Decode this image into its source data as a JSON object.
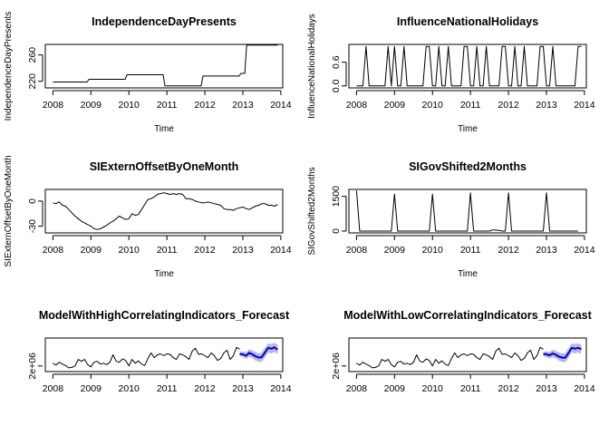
{
  "chart_data": [
    {
      "type": "line",
      "title": "IndependenceDayPresents",
      "xlabel": "Time",
      "ylabel": "IndependenceDayPresents",
      "xlim": [
        2007.8,
        2014.05
      ],
      "ylim": [
        210,
        276
      ],
      "xticks": [
        "2008",
        "2009",
        "2010",
        "2011",
        "2012",
        "2013",
        "2014"
      ],
      "yticks": [
        "220",
        "260"
      ],
      "grid": false,
      "series": [
        {
          "x": [
            2008.0,
            2008.9,
            2008.95,
            2009.9,
            2009.95,
            2010.9,
            2010.95,
            2011.9,
            2011.95,
            2012.9,
            2012.95,
            2013.05,
            2013.1,
            2013.92
          ],
          "y": [
            219,
            219,
            223,
            223,
            230,
            230,
            213,
            213,
            228,
            228,
            232,
            232,
            275,
            275
          ],
          "color": "#000000"
        }
      ]
    },
    {
      "type": "line",
      "title": "InfluenceNationalHolidays",
      "xlabel": "Time",
      "ylabel": "InfluenceNationalHolidays",
      "xlim": [
        2007.8,
        2014.05
      ],
      "ylim": [
        -0.05,
        1.05
      ],
      "xticks": [
        "2008",
        "2009",
        "2010",
        "2011",
        "2012",
        "2013",
        "2014"
      ],
      "yticks": [
        "0.0",
        "0.6"
      ],
      "grid": false,
      "series": [
        {
          "x": [
            2008.0,
            2008.083,
            2008.167,
            2008.25,
            2008.333,
            2008.417,
            2008.5,
            2008.583,
            2008.667,
            2008.75,
            2008.833,
            2008.917,
            2009.0,
            2009.083,
            2009.167,
            2009.25,
            2009.333,
            2009.417,
            2009.5,
            2009.583,
            2009.667,
            2009.75,
            2009.833,
            2009.917,
            2010.0,
            2010.083,
            2010.167,
            2010.25,
            2010.333,
            2010.417,
            2010.5,
            2010.583,
            2010.667,
            2010.75,
            2010.833,
            2010.917,
            2011.0,
            2011.083,
            2011.167,
            2011.25,
            2011.333,
            2011.417,
            2011.5,
            2011.583,
            2011.667,
            2011.75,
            2011.833,
            2011.917,
            2012.0,
            2012.083,
            2012.167,
            2012.25,
            2012.333,
            2012.417,
            2012.5,
            2012.583,
            2012.667,
            2012.75,
            2012.833,
            2012.917,
            2013.0,
            2013.083,
            2013.167,
            2013.25,
            2013.333,
            2013.417,
            2013.5,
            2013.583,
            2013.667,
            2013.75,
            2013.833,
            2013.917
          ],
          "y": [
            0,
            0,
            0,
            1,
            0,
            0,
            0,
            0,
            0,
            0,
            1,
            0,
            1,
            0,
            0,
            1,
            0,
            0,
            0,
            0,
            0,
            0,
            1,
            1,
            0,
            0,
            1,
            0,
            0,
            1,
            0,
            0,
            0,
            0,
            1,
            1,
            0,
            0,
            1,
            0,
            0,
            1,
            0,
            0,
            0,
            0,
            1,
            1,
            0,
            0,
            1,
            0,
            0,
            1,
            0,
            0,
            0,
            0,
            1,
            1,
            0,
            0,
            1,
            0,
            0,
            0,
            0,
            0,
            0,
            0,
            1,
            1
          ],
          "color": "#000000"
        }
      ]
    },
    {
      "type": "line",
      "title": "SIExternOffsetByOneMonth",
      "xlabel": "Time",
      "ylabel": "SIExternOffsetByOneMonth",
      "xlim": [
        2007.8,
        2014.05
      ],
      "ylim": [
        -38,
        14
      ],
      "xticks": [
        "2008",
        "2009",
        "2010",
        "2011",
        "2012",
        "2013",
        "2014"
      ],
      "yticks": [
        "-30",
        "0"
      ],
      "grid": false,
      "series": [
        {
          "x": [
            2008.0,
            2008.083,
            2008.167,
            2008.25,
            2008.333,
            2008.417,
            2008.5,
            2008.583,
            2008.667,
            2008.75,
            2008.833,
            2008.917,
            2009.0,
            2009.083,
            2009.167,
            2009.25,
            2009.333,
            2009.417,
            2009.5,
            2009.583,
            2009.667,
            2009.75,
            2009.833,
            2009.917,
            2010.0,
            2010.083,
            2010.167,
            2010.25,
            2010.333,
            2010.417,
            2010.5,
            2010.583,
            2010.667,
            2010.75,
            2010.833,
            2010.917,
            2011.0,
            2011.083,
            2011.167,
            2011.25,
            2011.333,
            2011.417,
            2011.5,
            2011.583,
            2011.667,
            2011.75,
            2011.833,
            2011.917,
            2012.0,
            2012.083,
            2012.167,
            2012.25,
            2012.333,
            2012.417,
            2012.5,
            2012.583,
            2012.667,
            2012.75,
            2012.833,
            2012.917,
            2013.0,
            2013.083,
            2013.167,
            2013.25,
            2013.333,
            2013.417,
            2013.5,
            2013.583,
            2013.667,
            2013.75,
            2013.833,
            2013.917
          ],
          "y": [
            -2,
            -3,
            -1,
            -5,
            -6,
            -10,
            -14,
            -18,
            -21,
            -24,
            -26,
            -28,
            -30,
            -33,
            -34,
            -33,
            -31,
            -29,
            -26,
            -24,
            -21,
            -18,
            -20,
            -22,
            -21,
            -15,
            -17,
            -16,
            -10,
            -4,
            2,
            3,
            5,
            8,
            9,
            10,
            9,
            8,
            9,
            8,
            9,
            8,
            3,
            3,
            2,
            0,
            -1,
            -2,
            -2,
            -1,
            -2,
            -3,
            -4,
            -5,
            -9,
            -10,
            -10,
            -11,
            -9,
            -8,
            -7,
            -9,
            -10,
            -8,
            -6,
            -5,
            -3,
            -3,
            -5,
            -5,
            -6,
            -4
          ],
          "color": "#000000"
        }
      ]
    },
    {
      "type": "line",
      "title": "SIGovShifted2Months",
      "xlabel": "Time",
      "ylabel": "SIGovShifted2Months",
      "xlim": [
        2007.8,
        2014.05
      ],
      "ylim": [
        -80,
        1800
      ],
      "xticks": [
        "2008",
        "2009",
        "2010",
        "2011",
        "2012",
        "2013",
        "2014"
      ],
      "yticks": [
        "0",
        "1500"
      ],
      "grid": false,
      "series": [
        {
          "x": [
            2008.0,
            2008.083,
            2008.167,
            2008.25,
            2008.333,
            2008.417,
            2008.5,
            2008.583,
            2008.667,
            2008.75,
            2008.833,
            2008.917,
            2009.0,
            2009.083,
            2009.167,
            2009.25,
            2009.333,
            2009.417,
            2009.5,
            2009.583,
            2009.667,
            2009.75,
            2009.833,
            2009.917,
            2010.0,
            2010.083,
            2010.167,
            2010.25,
            2010.333,
            2010.417,
            2010.5,
            2010.583,
            2010.667,
            2010.75,
            2010.833,
            2010.917,
            2011.0,
            2011.083,
            2011.167,
            2011.25,
            2011.333,
            2011.417,
            2011.5,
            2011.583,
            2011.667,
            2011.75,
            2011.833,
            2011.917,
            2012.0,
            2012.083,
            2012.167,
            2012.25,
            2012.333,
            2012.417,
            2012.5,
            2012.583,
            2012.667,
            2012.75,
            2012.833,
            2012.917,
            2013.0,
            2013.083,
            2013.167,
            2013.25,
            2013.333,
            2013.417,
            2013.5,
            2013.583,
            2013.667,
            2013.75,
            2013.833
          ],
          "y": [
            1750,
            0,
            0,
            0,
            0,
            0,
            0,
            0,
            0,
            0,
            0,
            0,
            1600,
            0,
            0,
            0,
            0,
            0,
            0,
            0,
            0,
            0,
            0,
            0,
            1600,
            0,
            0,
            0,
            0,
            0,
            0,
            0,
            0,
            0,
            0,
            0,
            1650,
            0,
            0,
            0,
            0,
            0,
            0,
            50,
            40,
            30,
            0,
            0,
            1650,
            0,
            0,
            0,
            0,
            0,
            0,
            0,
            0,
            0,
            0,
            0,
            1650,
            0,
            0,
            0,
            0,
            0,
            0,
            0,
            0,
            0,
            0
          ],
          "color": "#000000"
        }
      ]
    },
    {
      "type": "line",
      "title": "ModelWithHighCorrelatingIndicators_Forecast",
      "xlabel": "",
      "ylabel": "",
      "xlim": [
        2007.8,
        2014.05
      ],
      "ylim": [
        1400000,
        5000000
      ],
      "xticks": [
        "2008",
        "2009",
        "2010",
        "2011",
        "2012",
        "2013",
        "2014"
      ],
      "yticks": [
        "2e+06"
      ],
      "grid": false,
      "series": [
        {
          "name": "",
          "x": [
            2008.0,
            2008.083,
            2008.167,
            2008.25,
            2008.333,
            2008.417,
            2008.5,
            2008.583,
            2008.667,
            2008.75,
            2008.833,
            2008.917,
            2009.0,
            2009.083,
            2009.167,
            2009.25,
            2009.333,
            2009.417,
            2009.5,
            2009.583,
            2009.667,
            2009.75,
            2009.833,
            2009.917,
            2010.0,
            2010.083,
            2010.167,
            2010.25,
            2010.333,
            2010.417,
            2010.5,
            2010.583,
            2010.667,
            2010.75,
            2010.833,
            2010.917,
            2011.0,
            2011.083,
            2011.167,
            2011.25,
            2011.333,
            2011.417,
            2011.5,
            2011.583,
            2011.667,
            2011.75,
            2011.833,
            2011.917,
            2012.0,
            2012.083,
            2012.167,
            2012.25,
            2012.333,
            2012.417,
            2012.5,
            2012.583,
            2012.667,
            2012.75,
            2012.833,
            2012.917
          ],
          "y": [
            2300000,
            2100000,
            2400000,
            2200000,
            2050000,
            1800000,
            1850000,
            2000000,
            2700000,
            2500000,
            2700000,
            2150000,
            1900000,
            2400000,
            2500000,
            2200000,
            2300000,
            2150000,
            2400000,
            3200000,
            2500000,
            2400000,
            2750000,
            2600000,
            2000000,
            2700000,
            2300000,
            2550000,
            2200000,
            2050000,
            2800000,
            3400000,
            2900000,
            3200000,
            3300000,
            3100000,
            3300000,
            3250000,
            2900000,
            2700000,
            3300000,
            3200000,
            3000000,
            2700000,
            3600000,
            3900000,
            3250000,
            3300000,
            3100000,
            2900000,
            3400000,
            3100000,
            2600000,
            2800000,
            3400000,
            3700000,
            2700000,
            3100000,
            4000000,
            3800000
          ],
          "color": "#000000"
        },
        {
          "name": "",
          "x": [
            2012.917,
            2013.0,
            2013.083,
            2013.167,
            2013.25,
            2013.333,
            2013.417,
            2013.5,
            2013.583,
            2013.667,
            2013.75,
            2013.833,
            2013.917
          ],
          "y": [
            3300000,
            3250000,
            3100000,
            3400000,
            3250000,
            3050000,
            2900000,
            2950000,
            3450000,
            3950000,
            3850000,
            4000000,
            3750000
          ],
          "lower": [
            3050000,
            2950000,
            2750000,
            3000000,
            2850000,
            2600000,
            2450000,
            2450000,
            2950000,
            3450000,
            3350000,
            3500000,
            3250000
          ],
          "upper": [
            3550000,
            3550000,
            3450000,
            3800000,
            3650000,
            3500000,
            3350000,
            3450000,
            3950000,
            4450000,
            4350000,
            4500000,
            4250000
          ],
          "color": "#0000cc",
          "band_color": "#b8b8e6"
        }
      ]
    },
    {
      "type": "line",
      "title": "ModelWithLowCorrelatingIndicators_Forecast",
      "xlabel": "",
      "ylabel": "",
      "xlim": [
        2007.8,
        2014.05
      ],
      "ylim": [
        1400000,
        5000000
      ],
      "xticks": [
        "2008",
        "2009",
        "2010",
        "2011",
        "2012",
        "2013",
        "2014"
      ],
      "yticks": [
        "2e+06"
      ],
      "grid": false,
      "series": [
        {
          "name": "",
          "x": [
            2008.0,
            2008.083,
            2008.167,
            2008.25,
            2008.333,
            2008.417,
            2008.5,
            2008.583,
            2008.667,
            2008.75,
            2008.833,
            2008.917,
            2009.0,
            2009.083,
            2009.167,
            2009.25,
            2009.333,
            2009.417,
            2009.5,
            2009.583,
            2009.667,
            2009.75,
            2009.833,
            2009.917,
            2010.0,
            2010.083,
            2010.167,
            2010.25,
            2010.333,
            2010.417,
            2010.5,
            2010.583,
            2010.667,
            2010.75,
            2010.833,
            2010.917,
            2011.0,
            2011.083,
            2011.167,
            2011.25,
            2011.333,
            2011.417,
            2011.5,
            2011.583,
            2011.667,
            2011.75,
            2011.833,
            2011.917,
            2012.0,
            2012.083,
            2012.167,
            2012.25,
            2012.333,
            2012.417,
            2012.5,
            2012.583,
            2012.667,
            2012.75,
            2012.833,
            2012.917
          ],
          "y": [
            2300000,
            2100000,
            2400000,
            2200000,
            2050000,
            1800000,
            1850000,
            2000000,
            2700000,
            2500000,
            2700000,
            2150000,
            1900000,
            2400000,
            2500000,
            2200000,
            2300000,
            2150000,
            2400000,
            3200000,
            2500000,
            2400000,
            2750000,
            2600000,
            2000000,
            2700000,
            2300000,
            2550000,
            2200000,
            2050000,
            2800000,
            3400000,
            2900000,
            3200000,
            3300000,
            3100000,
            3300000,
            3250000,
            2900000,
            2700000,
            3300000,
            3200000,
            3000000,
            2700000,
            3600000,
            3900000,
            3250000,
            3300000,
            3100000,
            2900000,
            3400000,
            3100000,
            2600000,
            2800000,
            3400000,
            3700000,
            2700000,
            3100000,
            4000000,
            3800000
          ],
          "color": "#000000"
        },
        {
          "name": "",
          "x": [
            2012.917,
            2013.0,
            2013.083,
            2013.167,
            2013.25,
            2013.333,
            2013.417,
            2013.5,
            2013.583,
            2013.667,
            2013.75,
            2013.833,
            2013.917
          ],
          "y": [
            3300000,
            3250000,
            3150000,
            3350000,
            3200000,
            3000000,
            2900000,
            2900000,
            3400000,
            3950000,
            3850000,
            3950000,
            3800000
          ],
          "lower": [
            3050000,
            2950000,
            2800000,
            2950000,
            2800000,
            2550000,
            2450000,
            2400000,
            2900000,
            3450000,
            3350000,
            3450000,
            3300000
          ],
          "upper": [
            3550000,
            3550000,
            3500000,
            3750000,
            3600000,
            3450000,
            3350000,
            3400000,
            3900000,
            4450000,
            4350000,
            4450000,
            4300000
          ],
          "color": "#0000cc",
          "band_color": "#b8b8e6"
        }
      ]
    }
  ]
}
